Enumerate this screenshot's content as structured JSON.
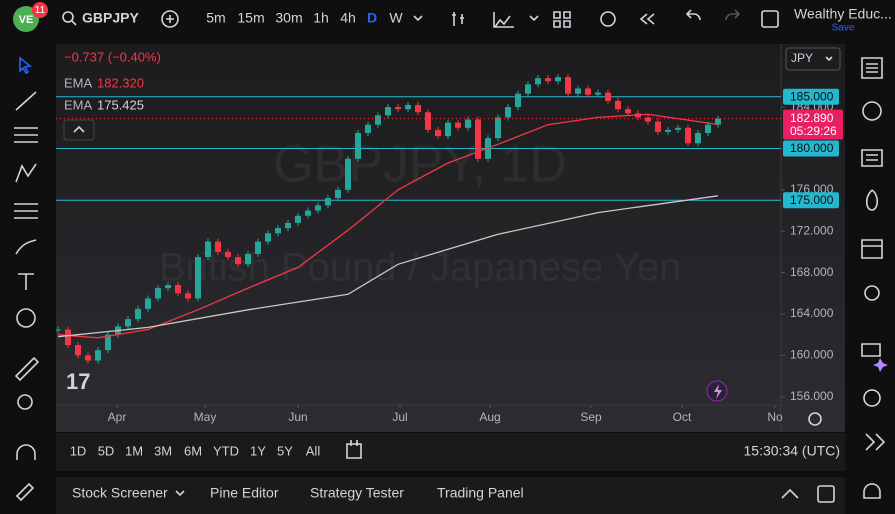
{
  "header": {
    "badge": "11",
    "symbol": "GBPJPY",
    "timeframes": [
      "5m",
      "15m",
      "30m",
      "1h",
      "4h",
      "D",
      "W"
    ],
    "active_timeframe": "D",
    "account": "Wealthy Educ...",
    "save": "Save"
  },
  "legend": {
    "change": "−0.737 (−0.40%)",
    "emas": [
      {
        "label": "EMA",
        "value": 182.32,
        "value_label": "182.320",
        "color": "#f23645"
      },
      {
        "label": "EMA",
        "value": 175.425,
        "value_label": "175.425",
        "color": "#d1d4dc"
      }
    ]
  },
  "chart_data": {
    "type": "candlestick",
    "watermark": "GBPJPY, 1D",
    "subtitle": "British Pound / Japanese Yen",
    "currency": "JPY",
    "closes": [
      162.5,
      161,
      160,
      159.5,
      160.5,
      162,
      162.8,
      163.5,
      164.5,
      165.5,
      166.5,
      166.8,
      166,
      165.5,
      169.5,
      171,
      170,
      169.5,
      168.8,
      169.8,
      171,
      171.8,
      172.3,
      172.8,
      173.5,
      174,
      174.5,
      175.2,
      176,
      179,
      181.5,
      182.3,
      183.2,
      184,
      183.8,
      184.2,
      183.5,
      181.8,
      181.2,
      182.5,
      182,
      182.8,
      179,
      181,
      183,
      184,
      185.3,
      186.2,
      186.8,
      186.5,
      186.9,
      185.3,
      185.8,
      185.2,
      185.4,
      184.6,
      183.8,
      183.4,
      183,
      182.6,
      181.6,
      181.8,
      182,
      180.5,
      181.5,
      182.3,
      182.89
    ],
    "up_color": "#26a69a",
    "down_color": "#f23645",
    "series": [
      {
        "name": "EMA",
        "color": "#f23645",
        "x": [
          0,
          4,
          9,
          14,
          19,
          24,
          29,
          34,
          39,
          44,
          49,
          54,
          59,
          66
        ],
        "values": [
          162,
          161.7,
          162.5,
          164.4,
          166.5,
          168.5,
          172.1,
          176,
          178.6,
          180.4,
          182.3,
          183,
          183.3,
          182.32
        ]
      },
      {
        "name": "EMA",
        "color": "#c8c8c8",
        "x": [
          0,
          9,
          19,
          29,
          34,
          44,
          54,
          66
        ],
        "values": [
          161.8,
          162.7,
          164.4,
          165.9,
          168.8,
          171.7,
          173.8,
          175.425
        ]
      }
    ],
    "levels": [
      {
        "value": 185,
        "label": "185.000"
      },
      {
        "value": 180,
        "label": "180.000"
      },
      {
        "value": 175,
        "label": "175.000"
      }
    ],
    "level_color": "#22b8cf",
    "last_price": {
      "value": 182.89,
      "label": "182.890",
      "countdown": "05:29:26"
    },
    "xlim": [
      -0.2,
      72.3
    ],
    "xticks": [
      {
        "value": 5.9,
        "label": "Apr"
      },
      {
        "value": 14.7,
        "label": "May"
      },
      {
        "value": 24,
        "label": "Jun"
      },
      {
        "value": 34.2,
        "label": "Jul"
      },
      {
        "value": 43.2,
        "label": "Aug"
      },
      {
        "value": 53.3,
        "label": "Sep"
      },
      {
        "value": 62.4,
        "label": "Oct"
      },
      {
        "value": 71.7,
        "label": "No"
      }
    ],
    "ylim": [
      155.2,
      190.1
    ],
    "yticks": [
      {
        "value": 156,
        "label": "156.000"
      },
      {
        "value": 160,
        "label": "160.000"
      },
      {
        "value": 164,
        "label": "164.000"
      },
      {
        "value": 168,
        "label": "168.000"
      },
      {
        "value": 172,
        "label": "172.000"
      },
      {
        "value": 176,
        "label": "176.000"
      },
      {
        "value": 184,
        "label": "184.000"
      }
    ]
  },
  "ranges": [
    "1D",
    "5D",
    "1M",
    "3M",
    "6M",
    "YTD",
    "1Y",
    "5Y",
    "All"
  ],
  "clock": "15:30:34 (UTC)",
  "bottom_tabs": [
    "Stock Screener",
    "Pine Editor",
    "Strategy Tester",
    "Trading Panel"
  ]
}
